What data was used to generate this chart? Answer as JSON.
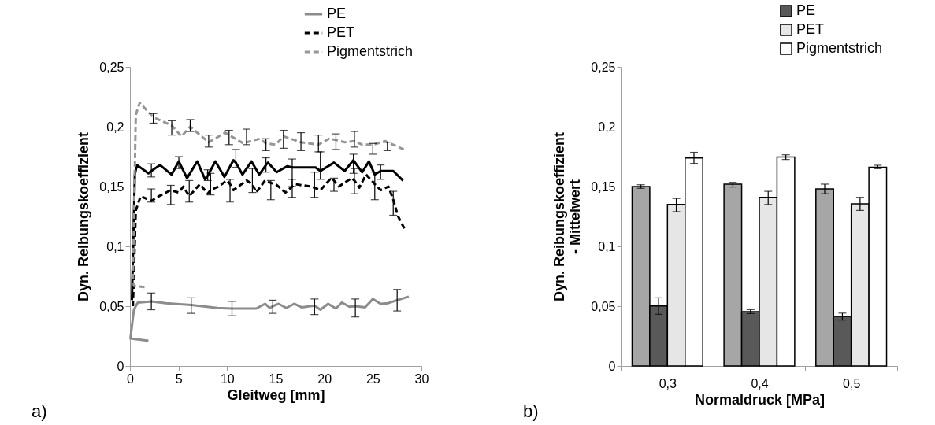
{
  "chart_data": [
    {
      "type": "line",
      "xlabel": "Gleitweg [mm]",
      "ylabel": "Dyn. Reibungskoeffizient",
      "annotations": [
        "a)"
      ],
      "xlim": [
        0,
        30
      ],
      "xticks": [
        0,
        5,
        10,
        15,
        20,
        25,
        30
      ],
      "ylim": [
        0,
        0.25
      ],
      "yticks": [
        {
          "value": 0,
          "label": "0"
        },
        {
          "value": 0.05,
          "label": "0,05"
        },
        {
          "value": 0.1,
          "label": "0,1"
        },
        {
          "value": 0.15,
          "label": "0,15"
        },
        {
          "value": 0.2,
          "label": "0,2"
        },
        {
          "value": 0.25,
          "label": "0,25"
        }
      ],
      "grid": false,
      "legend": "top right",
      "marker": "none",
      "series": [
        {
          "color": "#000000",
          "line_style": "solid",
          "x": [
            0.2,
            0.5,
            0.71,
            1.9,
            2.2,
            3.09,
            4.28,
            5.03,
            5.87,
            6.93,
            7.73,
            8.0,
            8.79,
            9.72,
            10.65,
            10.9,
            11.58,
            12.5,
            13.3,
            14.0,
            14.2,
            15.1,
            16.2,
            16.7,
            17.5,
            19.1,
            19.6,
            21.0,
            22.1,
            23.0,
            23.9,
            24.6,
            25.2,
            25.8,
            27.1,
            28.1
          ],
          "values": [
            0.055,
            0.16,
            0.168,
            0.161,
            0.163,
            0.168,
            0.16,
            0.171,
            0.157,
            0.171,
            0.156,
            0.159,
            0.171,
            0.158,
            0.172,
            0.17,
            0.16,
            0.171,
            0.16,
            0.168,
            0.17,
            0.162,
            0.167,
            0.166,
            0.166,
            0.166,
            0.163,
            0.17,
            0.163,
            0.172,
            0.162,
            0.171,
            0.16,
            0.163,
            0.163,
            0.155
          ],
          "errors": [
            null,
            null,
            null,
            null,
            [
              0.158,
              0.169
            ],
            null,
            null,
            [
              0.165,
              0.175
            ],
            null,
            null,
            null,
            [
              0.155,
              0.164
            ],
            null,
            null,
            null,
            [
              0.166,
              0.181
            ],
            null,
            null,
            null,
            [
              0.162,
              0.174
            ],
            null,
            null,
            null,
            [
              0.15,
              0.173
            ],
            null,
            null,
            [
              0.156,
              0.179
            ],
            null,
            null,
            [
              0.161,
              0.177
            ],
            null,
            null,
            null,
            [
              0.156,
              0.168
            ],
            null,
            null
          ]
        },
        {
          "name": "PE",
          "color": "#8c8c8c",
          "line_style": "solid",
          "x": [
            1.9,
            0.05,
            0.4,
            0.8,
            2.2,
            3.7,
            6.3,
            9.0,
            10.5,
            11.7,
            13.0,
            13.9,
            14.4,
            14.7,
            15.3,
            16.1,
            16.9,
            17.7,
            19.0,
            19.6,
            20.4,
            21.2,
            21.8,
            22.6,
            23.2,
            24.2,
            25.0,
            25.8,
            26.6,
            27.5,
            28.7
          ],
          "values": [
            0.021,
            0.023,
            0.047,
            0.053,
            0.054,
            0.0525,
            0.051,
            0.0485,
            0.048,
            0.048,
            0.048,
            0.052,
            0.0485,
            0.05,
            0.052,
            0.0485,
            0.052,
            0.049,
            0.0505,
            0.047,
            0.052,
            0.048,
            0.053,
            0.0495,
            0.05,
            0.049,
            0.056,
            0.052,
            0.0525,
            0.055,
            0.058
          ],
          "errors": [
            null,
            null,
            null,
            null,
            [
              0.047,
              0.061
            ],
            null,
            [
              0.044,
              0.057
            ],
            null,
            [
              0.042,
              0.054
            ],
            null,
            null,
            null,
            null,
            [
              0.044,
              0.055
            ],
            null,
            null,
            null,
            null,
            [
              0.043,
              0.056
            ],
            null,
            null,
            null,
            null,
            null,
            [
              0.041,
              0.056
            ],
            null,
            null,
            null,
            null,
            [
              0.046,
              0.064
            ],
            null
          ]
        },
        {
          "name": "PET",
          "color": "#000000",
          "line_style": "dashed",
          "x": [
            0.3,
            0.6,
            1.1,
            2.2,
            3.0,
            4.2,
            5.0,
            5.5,
            6.1,
            7.2,
            8.0,
            8.3,
            9.1,
            10.0,
            10.3,
            10.65,
            12.0,
            12.6,
            13.0,
            13.9,
            14.5,
            15.0,
            16.0,
            16.7,
            17.0,
            18.6,
            19.0,
            19.6,
            20.7,
            21.0,
            21.5,
            22.8,
            23.1,
            23.6,
            24.3,
            25.0,
            25.2,
            25.8,
            26.6,
            27.1,
            27.6,
            28.3
          ],
          "values": [
            0.05,
            0.13,
            0.142,
            0.138,
            0.142,
            0.147,
            0.145,
            0.15,
            0.142,
            0.152,
            0.144,
            0.147,
            0.15,
            0.155,
            0.152,
            0.147,
            0.155,
            0.152,
            0.145,
            0.155,
            0.153,
            0.152,
            0.145,
            0.15,
            0.152,
            0.15,
            0.149,
            0.147,
            0.157,
            0.155,
            0.15,
            0.157,
            0.155,
            0.149,
            0.16,
            0.154,
            0.152,
            0.147,
            0.15,
            0.139,
            0.125,
            0.114
          ],
          "errors": [
            null,
            null,
            null,
            [
              0.137,
              0.148
            ],
            null,
            [
              0.135,
              0.151
            ],
            null,
            null,
            [
              0.137,
              0.155
            ],
            null,
            null,
            [
              0.143,
              0.161
            ],
            null,
            null,
            [
              0.137,
              0.156
            ],
            null,
            null,
            [
              0.145,
              0.165
            ],
            null,
            null,
            [
              0.139,
              0.155
            ],
            null,
            null,
            [
              0.141,
              0.156
            ],
            null,
            null,
            [
              0.141,
              0.162
            ],
            null,
            null,
            [
              0.146,
              0.157
            ],
            null,
            null,
            [
              0.144,
              0.165
            ],
            null,
            null,
            null,
            [
              0.139,
              0.162
            ],
            null,
            null,
            [
              0.126,
              0.146
            ],
            null,
            null
          ]
        },
        {
          "name": "Pigmentstrich",
          "color": "#969696",
          "line_style": "dashed",
          "x": [
            1.5,
            0.4,
            0.3,
            0.6,
            1.0,
            2.4,
            4.3,
            5.3,
            6.2,
            8.1,
            9.8,
            10.2,
            11.7,
            12.0,
            13.4,
            14.0,
            15.0,
            15.8,
            17.6,
            19.4,
            20.5,
            21.2,
            22.1,
            23.1,
            23.9,
            25.0,
            26.3,
            26.5,
            28.2
          ],
          "values": [
            0.066,
            0.067,
            0.075,
            0.21,
            0.22,
            0.208,
            0.201,
            0.192,
            0.2,
            0.187,
            0.195,
            0.193,
            0.186,
            0.187,
            0.19,
            0.186,
            0.185,
            0.192,
            0.187,
            0.185,
            0.19,
            0.189,
            0.187,
            0.188,
            0.185,
            0.185,
            0.188,
            0.187,
            0.181
          ],
          "errors": [
            null,
            null,
            null,
            null,
            null,
            [
              0.203,
              0.211
            ],
            [
              0.193,
              0.205
            ],
            null,
            [
              0.196,
              0.206
            ],
            [
              0.183,
              0.193
            ],
            null,
            [
              0.185,
              0.197
            ],
            null,
            [
              0.185,
              0.198
            ],
            null,
            [
              0.18,
              0.19
            ],
            null,
            [
              0.182,
              0.197
            ],
            [
              0.18,
              0.195
            ],
            [
              0.179,
              0.193
            ],
            null,
            [
              0.181,
              0.194
            ],
            null,
            [
              0.183,
              0.196
            ],
            null,
            [
              0.177,
              0.186
            ],
            null,
            [
              0.18,
              0.187
            ],
            null
          ]
        }
      ]
    },
    {
      "type": "bar",
      "xlabel": "Normaldruck [MPa]",
      "ylabel": "Dyn. Reibungskoeffizient - Mittelwert",
      "annotations": [
        "b)"
      ],
      "categories": [
        "0,3",
        "0,4",
        "0,5"
      ],
      "ylim": [
        0,
        0.25
      ],
      "yticks": [
        {
          "value": 0,
          "label": "0"
        },
        {
          "value": 0.05,
          "label": "0,05"
        },
        {
          "value": 0.1,
          "label": "0,1"
        },
        {
          "value": 0.15,
          "label": "0,15"
        },
        {
          "value": 0.2,
          "label": "0,2"
        },
        {
          "value": 0.25,
          "label": "0,25"
        }
      ],
      "grid": false,
      "legend": "top right",
      "series": [
        {
          "color": "#a6a6a6",
          "values": [
            0.15,
            0.152,
            0.148
          ],
          "errors": [
            [
              0.1485,
              0.1515
            ],
            [
              0.1496,
              0.1535
            ],
            [
              0.144,
              0.152
            ]
          ]
        },
        {
          "name": "PE",
          "color": "#595959",
          "values": [
            0.0502,
            0.0454,
            0.0415
          ],
          "errors": [
            [
              0.0432,
              0.057
            ],
            [
              0.0438,
              0.0471
            ],
            [
              0.0384,
              0.0442
            ]
          ]
        },
        {
          "name": "PET",
          "color": "#e6e6e6",
          "values": [
            0.135,
            0.141,
            0.1355
          ],
          "errors": [
            [
              0.129,
              0.14
            ],
            [
              0.135,
              0.146
            ],
            [
              0.13,
              0.141
            ]
          ]
        },
        {
          "name": "Pigmentstrich",
          "color": "#ffffff",
          "values": [
            0.1738,
            0.1747,
            0.1662
          ],
          "errors": [
            [
              0.1693,
              0.1786
            ],
            [
              0.1726,
              0.1765
            ],
            [
              0.1649,
              0.1678
            ]
          ]
        }
      ]
    }
  ]
}
